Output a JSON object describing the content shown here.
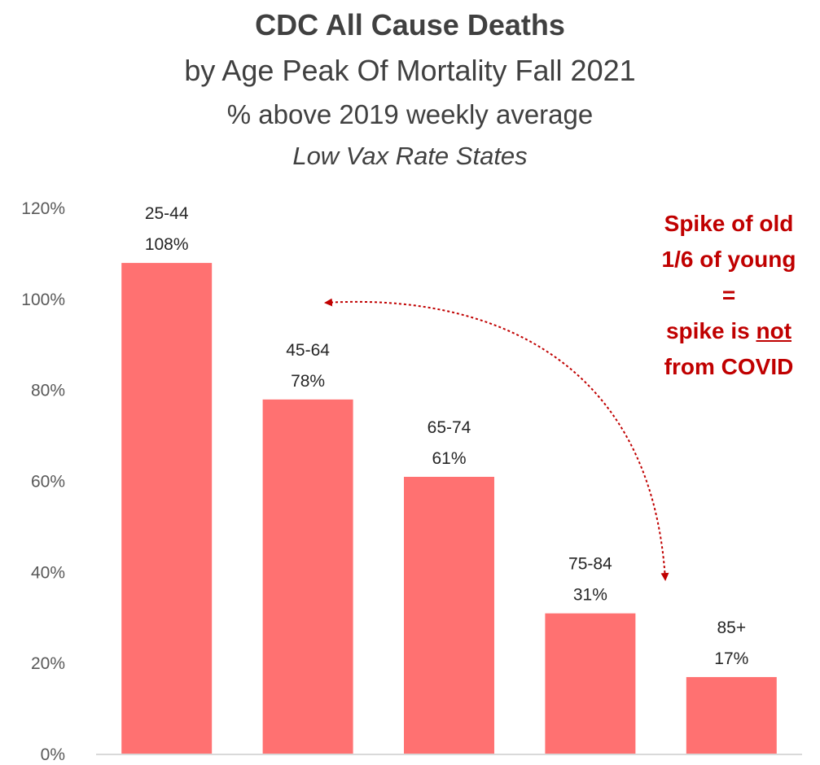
{
  "chart_data": {
    "type": "bar",
    "title": "CDC All Cause Deaths",
    "subtitle": "by Age Peak Of Mortality Fall 2021",
    "subtitle2": "% above 2019 weekly average",
    "subtitle3": "Low Vax Rate States",
    "categories": [
      "25-44",
      "45-64",
      "65-74",
      "75-84",
      "85+"
    ],
    "values": [
      108,
      78,
      61,
      31,
      17
    ],
    "data_labels": [
      "108%",
      "78%",
      "61%",
      "31%",
      "17%"
    ],
    "ylim": [
      0,
      120
    ],
    "y_ticks": [
      0,
      20,
      40,
      60,
      80,
      100,
      120
    ],
    "y_tick_labels": [
      "0%",
      "20%",
      "40%",
      "60%",
      "80%",
      "100%",
      "120%"
    ],
    "bar_color": "#ff7171",
    "grid": false,
    "legend": "none",
    "annotation": {
      "lines": [
        "Spike of old",
        "1/6 of young",
        "=",
        "spike is",
        "not",
        "from COVID"
      ],
      "color": "#c00000"
    }
  }
}
